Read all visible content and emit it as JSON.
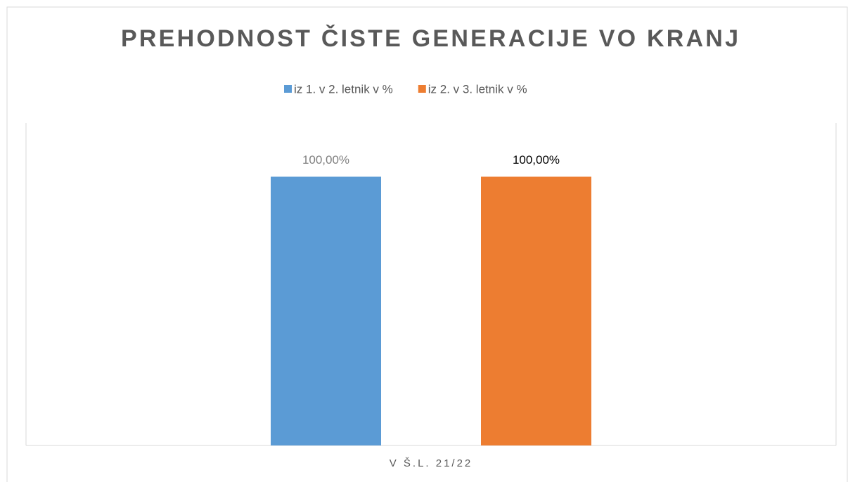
{
  "chart_data": {
    "type": "bar",
    "title": "PREHODNOST ČISTE GENERACIJE VO KRANJ",
    "categories": [
      "V Š.L. 21/22"
    ],
    "series": [
      {
        "name": "iz 1. v 2. letnik v %",
        "color": "#5b9bd5",
        "label_color": "#7f7f7f",
        "values": [
          100
        ],
        "value_labels": [
          "100,00%"
        ]
      },
      {
        "name": "iz 2. v 3. letnik v %",
        "color": "#ed7d31",
        "label_color": "#000000",
        "values": [
          100
        ],
        "value_labels": [
          "100,00%"
        ]
      }
    ],
    "ylim": [
      0,
      120
    ],
    "legend": "top"
  }
}
